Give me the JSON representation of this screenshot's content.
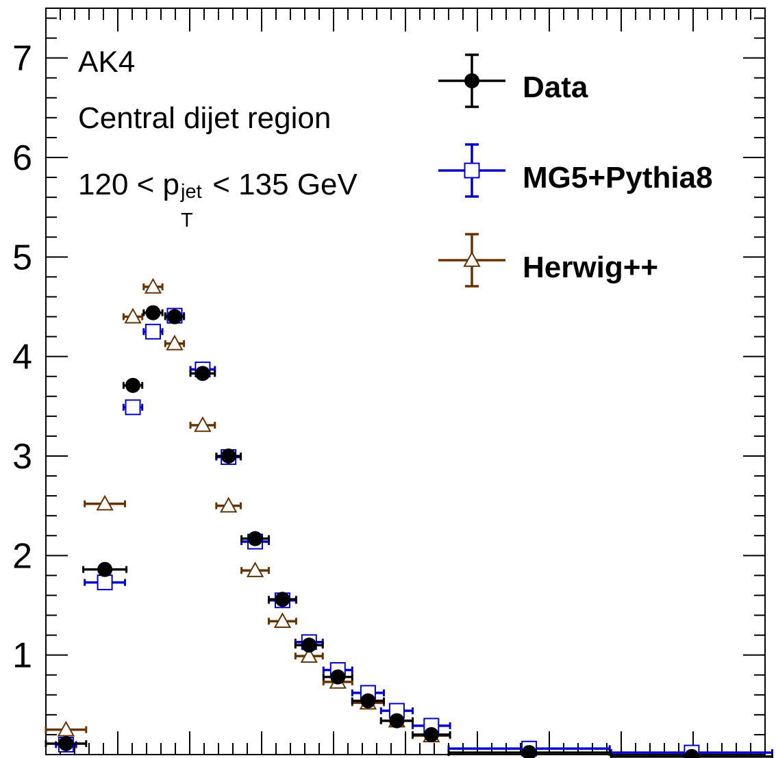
{
  "chart_data": {
    "type": "scatter",
    "title": "",
    "xlabel": "",
    "ylabel": "",
    "ylim": [
      0,
      7.5
    ],
    "xlim": [
      0,
      1
    ],
    "yticks": [
      "1",
      "2",
      "3",
      "4",
      "5",
      "6",
      "7"
    ],
    "annotations": {
      "line1": "AK4",
      "line2": "Central dijet region",
      "pt_prefix": "120 < p",
      "pt_sup": "jet",
      "pt_sub": "T",
      "pt_suffix": " < 135 GeV"
    },
    "legend_position": "top-right",
    "series": [
      {
        "name": "Data",
        "color": "#000000",
        "marker": "filled-circle",
        "points": [
          {
            "x": 0.028,
            "y": 0.11,
            "xerr": 0.028
          },
          {
            "x": 0.082,
            "y": 1.86,
            "xerr": 0.03
          },
          {
            "x": 0.121,
            "y": 3.71,
            "xerr": 0.013
          },
          {
            "x": 0.149,
            "y": 4.44,
            "xerr": 0.013
          },
          {
            "x": 0.179,
            "y": 4.4,
            "xerr": 0.013
          },
          {
            "x": 0.218,
            "y": 3.83,
            "xerr": 0.017
          },
          {
            "x": 0.254,
            "y": 3.0,
            "xerr": 0.017
          },
          {
            "x": 0.291,
            "y": 2.17,
            "xerr": 0.019
          },
          {
            "x": 0.329,
            "y": 1.56,
            "xerr": 0.019
          },
          {
            "x": 0.366,
            "y": 1.1,
            "xerr": 0.019
          },
          {
            "x": 0.406,
            "y": 0.78,
            "xerr": 0.02
          },
          {
            "x": 0.448,
            "y": 0.54,
            "xerr": 0.022
          },
          {
            "x": 0.488,
            "y": 0.34,
            "xerr": 0.022
          },
          {
            "x": 0.536,
            "y": 0.2,
            "xerr": 0.026
          },
          {
            "x": 0.672,
            "y": 0.02,
            "xerr": 0.112
          },
          {
            "x": 0.898,
            "y": -0.02,
            "xerr": 0.112
          }
        ]
      },
      {
        "name": "MG5+Pythia8",
        "color": "#0000cc",
        "marker": "open-square",
        "points": [
          {
            "x": 0.028,
            "y": 0.1,
            "xerr": 0.014
          },
          {
            "x": 0.082,
            "y": 1.73,
            "xerr": 0.028
          },
          {
            "x": 0.121,
            "y": 3.49,
            "xerr": 0.013
          },
          {
            "x": 0.149,
            "y": 4.25,
            "xerr": 0.013
          },
          {
            "x": 0.179,
            "y": 4.41,
            "xerr": 0.013
          },
          {
            "x": 0.218,
            "y": 3.87,
            "xerr": 0.017
          },
          {
            "x": 0.254,
            "y": 2.99,
            "xerr": 0.017
          },
          {
            "x": 0.291,
            "y": 2.14,
            "xerr": 0.019
          },
          {
            "x": 0.329,
            "y": 1.55,
            "xerr": 0.019
          },
          {
            "x": 0.366,
            "y": 1.13,
            "xerr": 0.019
          },
          {
            "x": 0.406,
            "y": 0.85,
            "xerr": 0.02
          },
          {
            "x": 0.448,
            "y": 0.62,
            "xerr": 0.022
          },
          {
            "x": 0.488,
            "y": 0.44,
            "xerr": 0.022
          },
          {
            "x": 0.536,
            "y": 0.29,
            "xerr": 0.026
          },
          {
            "x": 0.672,
            "y": 0.06,
            "xerr": 0.112
          },
          {
            "x": 0.898,
            "y": 0.02,
            "xerr": 0.112
          }
        ]
      },
      {
        "name": "Herwig++",
        "color": "#663300",
        "marker": "open-triangle",
        "points": [
          {
            "x": 0.028,
            "y": 0.25,
            "xerr": 0.028
          },
          {
            "x": 0.082,
            "y": 2.52,
            "xerr": 0.028
          },
          {
            "x": 0.121,
            "y": 4.4,
            "xerr": 0.013
          },
          {
            "x": 0.149,
            "y": 4.7,
            "xerr": 0.013
          },
          {
            "x": 0.179,
            "y": 4.13,
            "xerr": 0.013
          },
          {
            "x": 0.218,
            "y": 3.31,
            "xerr": 0.017
          },
          {
            "x": 0.254,
            "y": 2.5,
            "xerr": 0.017
          },
          {
            "x": 0.291,
            "y": 1.85,
            "xerr": 0.019
          },
          {
            "x": 0.329,
            "y": 1.34,
            "xerr": 0.019
          },
          {
            "x": 0.366,
            "y": 0.99,
            "xerr": 0.019
          },
          {
            "x": 0.406,
            "y": 0.73,
            "xerr": 0.02
          },
          {
            "x": 0.448,
            "y": 0.52,
            "xerr": 0.022
          },
          {
            "x": 0.488,
            "y": 0.34,
            "xerr": 0.022
          },
          {
            "x": 0.536,
            "y": 0.19,
            "xerr": 0.026
          }
        ]
      }
    ]
  }
}
